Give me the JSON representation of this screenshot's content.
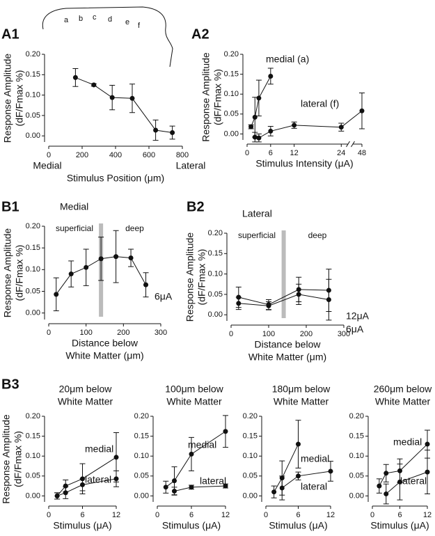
{
  "chart_data": [
    {
      "type": "line",
      "panel": "A1",
      "outline_labels": [
        "a",
        "b",
        "c",
        "d",
        "e",
        "f"
      ],
      "ylabel": [
        "Response Amplitude",
        "(dF/Fmax %)"
      ],
      "xlabel": [
        "Stimulus Position (μm)"
      ],
      "x_end_labels": [
        "Medial",
        "Lateral"
      ],
      "x": [
        160,
        270,
        380,
        500,
        640,
        740
      ],
      "values": [
        0.143,
        0.125,
        0.094,
        0.092,
        0.014,
        0.008
      ],
      "errors": [
        0.022,
        0.003,
        0.03,
        0.035,
        0.025,
        0.016
      ],
      "xlim": [
        0,
        800
      ],
      "xticks": [
        0,
        200,
        400,
        600,
        800
      ],
      "ylim": [
        -0.015,
        0.2
      ],
      "yticks": [
        {
          "value": 0,
          "label": "0.00"
        },
        {
          "value": 0.05,
          "label": "0.05"
        },
        {
          "value": 0.1,
          "label": "0.10"
        },
        {
          "value": 0.15,
          "label": "0.15"
        },
        {
          "value": 0.2,
          "label": "0.20"
        }
      ]
    },
    {
      "type": "line",
      "panel": "A2",
      "ylabel": [
        "Response Amplitude",
        "(dF/Fmax %)"
      ],
      "xlabel": [
        "Stimulus Intensity (μA)"
      ],
      "axis_break": true,
      "series": [
        {
          "name": "medial (a)",
          "x": [
            1,
            2,
            3,
            6
          ],
          "values": [
            0.018,
            0.042,
            0.09,
            0.145
          ],
          "errors": [
            0.005,
            0.05,
            0.045,
            0.02
          ]
        },
        {
          "name": "lateral (f)",
          "x": [
            2,
            3,
            6,
            12,
            24,
            48
          ],
          "values": [
            -0.008,
            -0.01,
            0.007,
            0.022,
            0.017,
            0.058
          ],
          "errors": [
            0.012,
            0.01,
            0.012,
            0.008,
            0.01,
            0.045
          ]
        }
      ],
      "xlim": [
        0,
        48
      ],
      "xticks": [
        0,
        6,
        12,
        24,
        48
      ],
      "ylim": [
        -0.015,
        0.2
      ],
      "yticks": [
        {
          "value": 0,
          "label": "0.00"
        },
        {
          "value": 0.05,
          "label": "0.05"
        },
        {
          "value": 0.1,
          "label": "0.10"
        },
        {
          "value": 0.15,
          "label": "0.15"
        },
        {
          "value": 0.2,
          "label": "0.20"
        }
      ]
    },
    {
      "type": "line",
      "panel": "B1",
      "title": [
        "Medial"
      ],
      "ylabel": [
        "Response Amplitude",
        "(dF/Fmax %)"
      ],
      "xlabel": [
        "Distance below",
        "White Matter (μm)"
      ],
      "region_labels": [
        "superficial",
        "deep"
      ],
      "divider": 140,
      "series": [
        {
          "name": "6μA",
          "x": [
            20,
            60,
            100,
            140,
            180,
            220,
            260
          ],
          "values": [
            0.043,
            0.09,
            0.105,
            0.125,
            0.13,
            0.127,
            0.065
          ],
          "errors": [
            0.038,
            0.03,
            0.042,
            0.05,
            0.06,
            0.02,
            0.028
          ]
        }
      ],
      "xlim": [
        0,
        300
      ],
      "xticks": [
        0,
        100,
        200,
        300
      ],
      "ylim": [
        -0.015,
        0.2
      ],
      "yticks": [
        {
          "value": 0,
          "label": "0.00"
        },
        {
          "value": 0.05,
          "label": "0.05"
        },
        {
          "value": 0.1,
          "label": "0.10"
        },
        {
          "value": 0.15,
          "label": "0.15"
        },
        {
          "value": 0.2,
          "label": "0.20"
        }
      ]
    },
    {
      "type": "line",
      "panel": "B2",
      "title": [
        "Lateral"
      ],
      "ylabel": [
        "Response Amplitude",
        "(dF/Fmax %)"
      ],
      "xlabel": [
        "Distance below",
        "White Matter (μm)"
      ],
      "region_labels": [
        "superficial",
        "deep"
      ],
      "divider": 140,
      "series": [
        {
          "name": "12μA",
          "x": [
            20,
            100,
            180,
            260
          ],
          "values": [
            0.043,
            0.025,
            0.062,
            0.06
          ],
          "errors": [
            0.025,
            0.012,
            0.03,
            0.052
          ]
        },
        {
          "name": "6μA",
          "x": [
            20,
            100,
            180,
            260
          ],
          "values": [
            0.028,
            0.022,
            0.05,
            0.037
          ],
          "errors": [
            0.015,
            0.01,
            0.025,
            0.05
          ]
        }
      ],
      "xlim": [
        0,
        300
      ],
      "xticks": [
        0,
        100,
        200,
        300
      ],
      "ylim": [
        -0.015,
        0.2
      ],
      "yticks": [
        {
          "value": 0,
          "label": "0.00"
        },
        {
          "value": 0.05,
          "label": "0.05"
        },
        {
          "value": 0.1,
          "label": "0.10"
        },
        {
          "value": 0.15,
          "label": "0.15"
        },
        {
          "value": 0.2,
          "label": "0.20"
        }
      ]
    },
    {
      "type": "line",
      "panel": "B3",
      "title": [
        "20μm below",
        "White Matter"
      ],
      "ylabel": [
        "Response Amplitude",
        "(dF/Fmax %)"
      ],
      "xlabel": [
        "Stimulus (μA)"
      ],
      "series": [
        {
          "name": "medial",
          "x": [
            1.5,
            3,
            6,
            12
          ],
          "values": [
            0,
            0.025,
            0.043,
            0.097
          ],
          "errors": [
            0.008,
            0.015,
            0.038,
            0.062
          ]
        },
        {
          "name": "lateral",
          "x": [
            1.5,
            3,
            6,
            12
          ],
          "values": [
            0,
            0.008,
            0.028,
            0.043
          ],
          "errors": [
            0.008,
            0.015,
            0.015,
            0.02
          ]
        }
      ],
      "xlim": [
        0,
        12
      ],
      "xticks": [
        0,
        6,
        12
      ],
      "ylim": [
        -0.015,
        0.2
      ],
      "yticks": [
        {
          "value": 0,
          "label": "0.00"
        },
        {
          "value": 0.05,
          "label": "0.05"
        },
        {
          "value": 0.1,
          "label": "0.10"
        },
        {
          "value": 0.15,
          "label": "0.15"
        },
        {
          "value": 0.2,
          "label": "0.20"
        }
      ]
    },
    {
      "type": "line",
      "title": [
        "100μm below",
        "White Matter"
      ],
      "xlabel": [
        "Stimulus (μA)"
      ],
      "series": [
        {
          "name": "medial",
          "x": [
            1.5,
            3,
            6,
            12
          ],
          "values": [
            0.022,
            0.038,
            0.105,
            0.162
          ],
          "errors": [
            0.015,
            0.035,
            0.042,
            0.04
          ]
        },
        {
          "name": "lateral",
          "x": [
            3,
            6,
            12
          ],
          "values": [
            0.012,
            0.022,
            0.025
          ],
          "errors": [
            0.01,
            0.005,
            0.005
          ]
        }
      ],
      "xlim": [
        0,
        12
      ],
      "xticks": [
        0,
        6,
        12
      ],
      "ylim": [
        -0.015,
        0.2
      ],
      "yticks": [
        {
          "value": 0,
          "label": "0.00"
        },
        {
          "value": 0.05,
          "label": "0.05"
        },
        {
          "value": 0.1,
          "label": "0.10"
        },
        {
          "value": 0.15,
          "label": "0.15"
        },
        {
          "value": 0.2,
          "label": "0.20"
        }
      ]
    },
    {
      "type": "line",
      "title": [
        "180μm below",
        "White Matter"
      ],
      "xlabel": [
        "Stimulus (μA)"
      ],
      "series": [
        {
          "name": "medial",
          "x": [
            1.5,
            3,
            6
          ],
          "values": [
            0.01,
            0.045,
            0.13
          ],
          "errors": [
            0.015,
            0.043,
            0.06
          ]
        },
        {
          "name": "lateral",
          "x": [
            3,
            6,
            12
          ],
          "values": [
            0.02,
            0.05,
            0.062
          ],
          "errors": [
            0.03,
            0.01,
            0.025
          ]
        }
      ],
      "xlim": [
        0,
        12
      ],
      "xticks": [
        0,
        6,
        12
      ],
      "ylim": [
        -0.015,
        0.2
      ],
      "yticks": [
        {
          "value": 0,
          "label": "0.00"
        },
        {
          "value": 0.05,
          "label": "0.05"
        },
        {
          "value": 0.1,
          "label": "0.10"
        },
        {
          "value": 0.15,
          "label": "0.15"
        },
        {
          "value": 0.2,
          "label": "0.20"
        }
      ]
    },
    {
      "type": "line",
      "title": [
        "260μm below",
        "White Matter"
      ],
      "xlabel": [
        "Stimulus (μA)"
      ],
      "series": [
        {
          "name": "medial",
          "x": [
            1.5,
            3,
            6,
            12
          ],
          "values": [
            0.025,
            0.057,
            0.063,
            0.13
          ],
          "errors": [
            0.018,
            0.022,
            0.03,
            0.035
          ]
        },
        {
          "name": "lateral",
          "x": [
            3,
            6,
            12
          ],
          "values": [
            0.005,
            0.035,
            0.06
          ],
          "errors": [
            0.025,
            0.045,
            0.055
          ]
        }
      ],
      "xlim": [
        0,
        12
      ],
      "xticks": [
        0,
        6,
        12
      ],
      "ylim": [
        -0.015,
        0.2
      ],
      "yticks": [
        {
          "value": 0,
          "label": "0.00"
        },
        {
          "value": 0.05,
          "label": "0.05"
        },
        {
          "value": 0.1,
          "label": "0.10"
        },
        {
          "value": 0.15,
          "label": "0.15"
        },
        {
          "value": 0.2,
          "label": "0.20"
        }
      ]
    }
  ]
}
